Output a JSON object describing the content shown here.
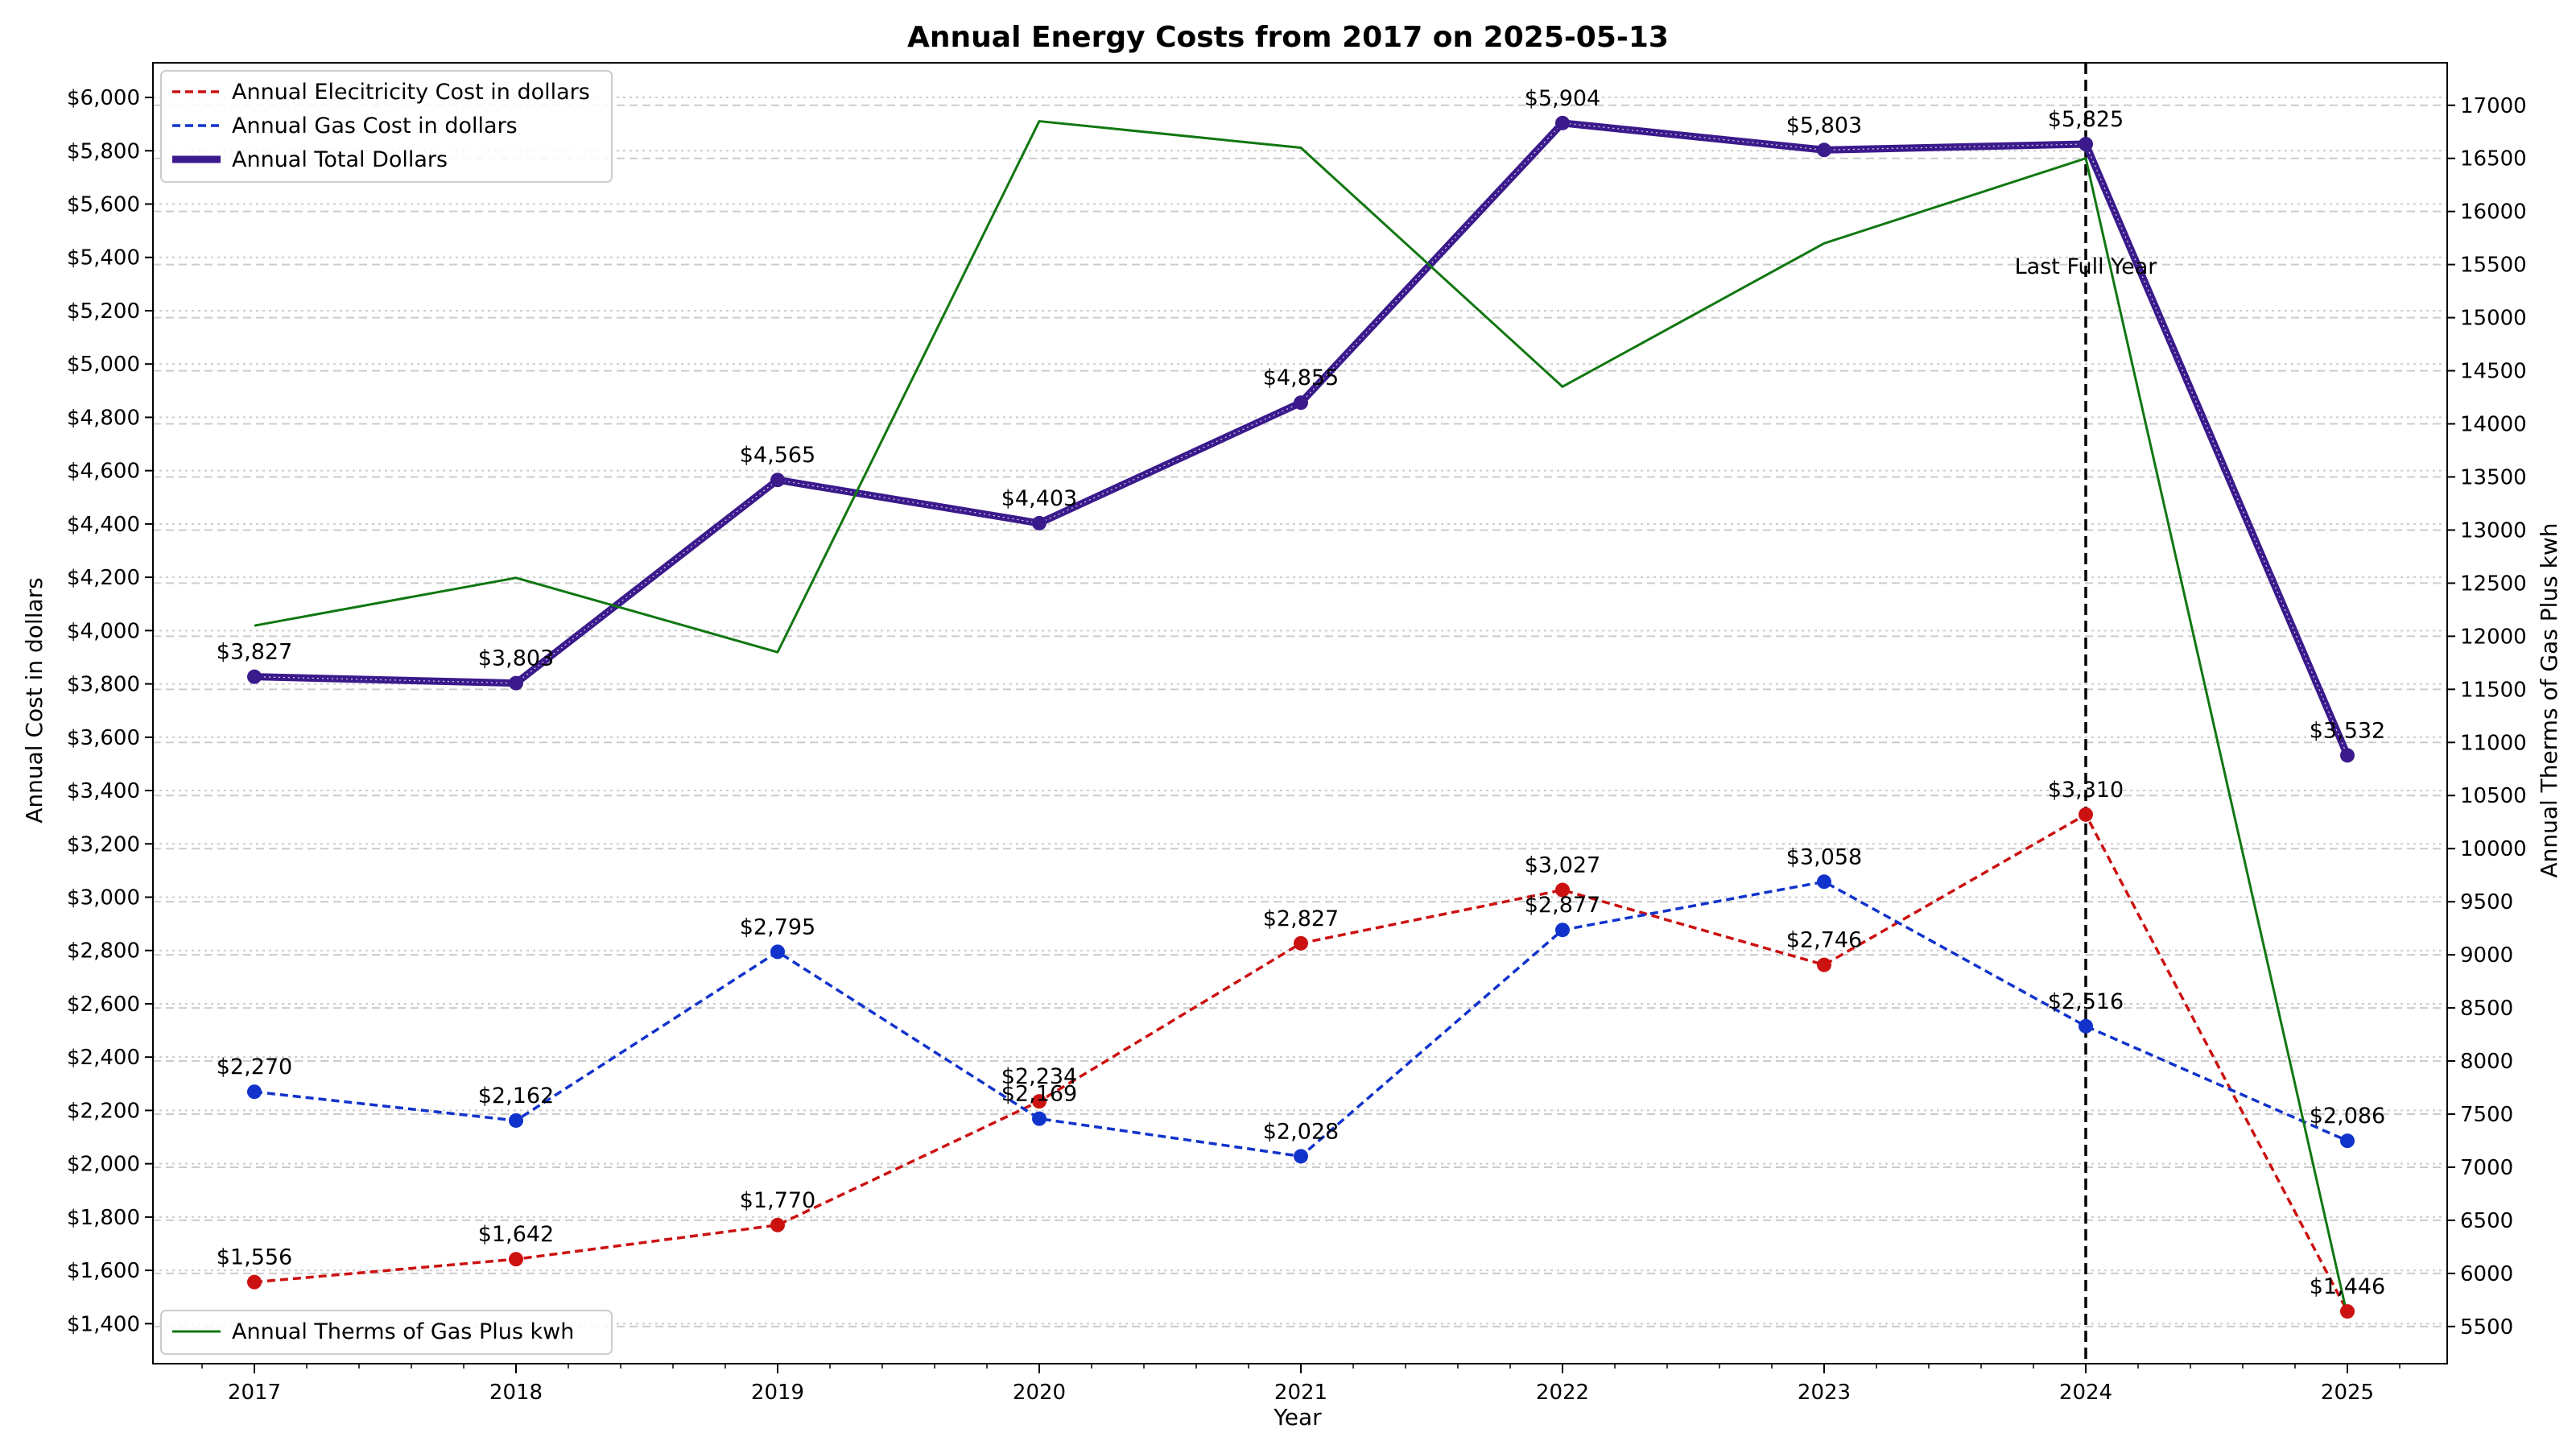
{
  "chart_data": {
    "type": "line",
    "title": "Annual Energy Costs from 2017 on 2025-05-13",
    "xlabel": "Year",
    "ylabel": "Annual Cost in dollars",
    "y2label": "Annual Therms of Gas Plus kwh",
    "categories": [
      "2017",
      "2018",
      "2019",
      "2020",
      "2021",
      "2022",
      "2023",
      "2024",
      "2025"
    ],
    "ylim": [
      1250,
      6130
    ],
    "y2lim": [
      5150,
      17400
    ],
    "yticks": [
      1400,
      1600,
      1800,
      2000,
      2200,
      2400,
      2600,
      2800,
      3000,
      3200,
      3400,
      3600,
      3800,
      4000,
      4200,
      4400,
      4600,
      4800,
      5000,
      5200,
      5400,
      5600,
      5800,
      6000
    ],
    "ytick_labels": [
      "$1,400",
      "$1,600",
      "$1,800",
      "$2,000",
      "$2,200",
      "$2,400",
      "$2,600",
      "$2,800",
      "$3,000",
      "$3,200",
      "$3,400",
      "$3,600",
      "$3,800",
      "$4,000",
      "$4,200",
      "$4,400",
      "$4,600",
      "$4,800",
      "$5,000",
      "$5,200",
      "$5,400",
      "$5,600",
      "$5,800",
      "$6,000"
    ],
    "y2ticks": [
      5500,
      6000,
      6500,
      7000,
      7500,
      8000,
      8500,
      9000,
      9500,
      10000,
      10500,
      11000,
      11500,
      12000,
      12500,
      13000,
      13500,
      14000,
      14500,
      15000,
      15500,
      16000,
      16500,
      17000
    ],
    "grid": true,
    "series": [
      {
        "name": "Annual Elecitricity Cost in dollars",
        "color": "#cc1111",
        "style": "dashed",
        "marker": "circle",
        "axis": "left",
        "values": [
          1556,
          1642,
          1770,
          2234,
          2827,
          3027,
          2746,
          3310,
          1446
        ],
        "labels": [
          "$1,556",
          "$1,642",
          "$1,770",
          "$2,234",
          "$2,827",
          "$3,027",
          "$2,746",
          "$3,310",
          "$1,446"
        ]
      },
      {
        "name": "Annual Gas Cost in dollars",
        "color": "#1133cc",
        "style": "dashed",
        "marker": "circle",
        "axis": "left",
        "values": [
          2270,
          2162,
          2795,
          2169,
          2028,
          2877,
          3058,
          2516,
          2086
        ],
        "labels": [
          "$2,270",
          "$2,162",
          "$2,795",
          "$2,169",
          "$2,028",
          "$2,877",
          "$3,058",
          "$2,516",
          "$2,086"
        ]
      },
      {
        "name": "Annual Total Dollars",
        "color": "#3b1a8c",
        "style": "solid-thick",
        "marker": "circle",
        "axis": "left",
        "values": [
          3827,
          3803,
          4565,
          4403,
          4855,
          5904,
          5803,
          5825,
          3532
        ],
        "labels": [
          "$3,827",
          "$3,803",
          "$4,565",
          "$4,403",
          "$4,855",
          "$5,904",
          "$5,803",
          "$5,825",
          "$3,532"
        ]
      },
      {
        "name": "Annual Therms of Gas Plus kwh",
        "color": "#117711",
        "style": "solid",
        "marker": "none",
        "axis": "right",
        "values": [
          12100,
          12550,
          11850,
          16850,
          16600,
          14350,
          15700,
          16500,
          5600
        ]
      }
    ],
    "legend_top": [
      "Annual Elecitricity Cost in dollars",
      "Annual Gas Cost in dollars",
      "Annual Total Dollars"
    ],
    "legend_top_position": "top-left",
    "legend_bottom": [
      "Annual Therms of Gas Plus kwh"
    ],
    "legend_bottom_position": "bottom-left",
    "annotation": {
      "text": "Last Full Year",
      "x": "2024"
    }
  }
}
